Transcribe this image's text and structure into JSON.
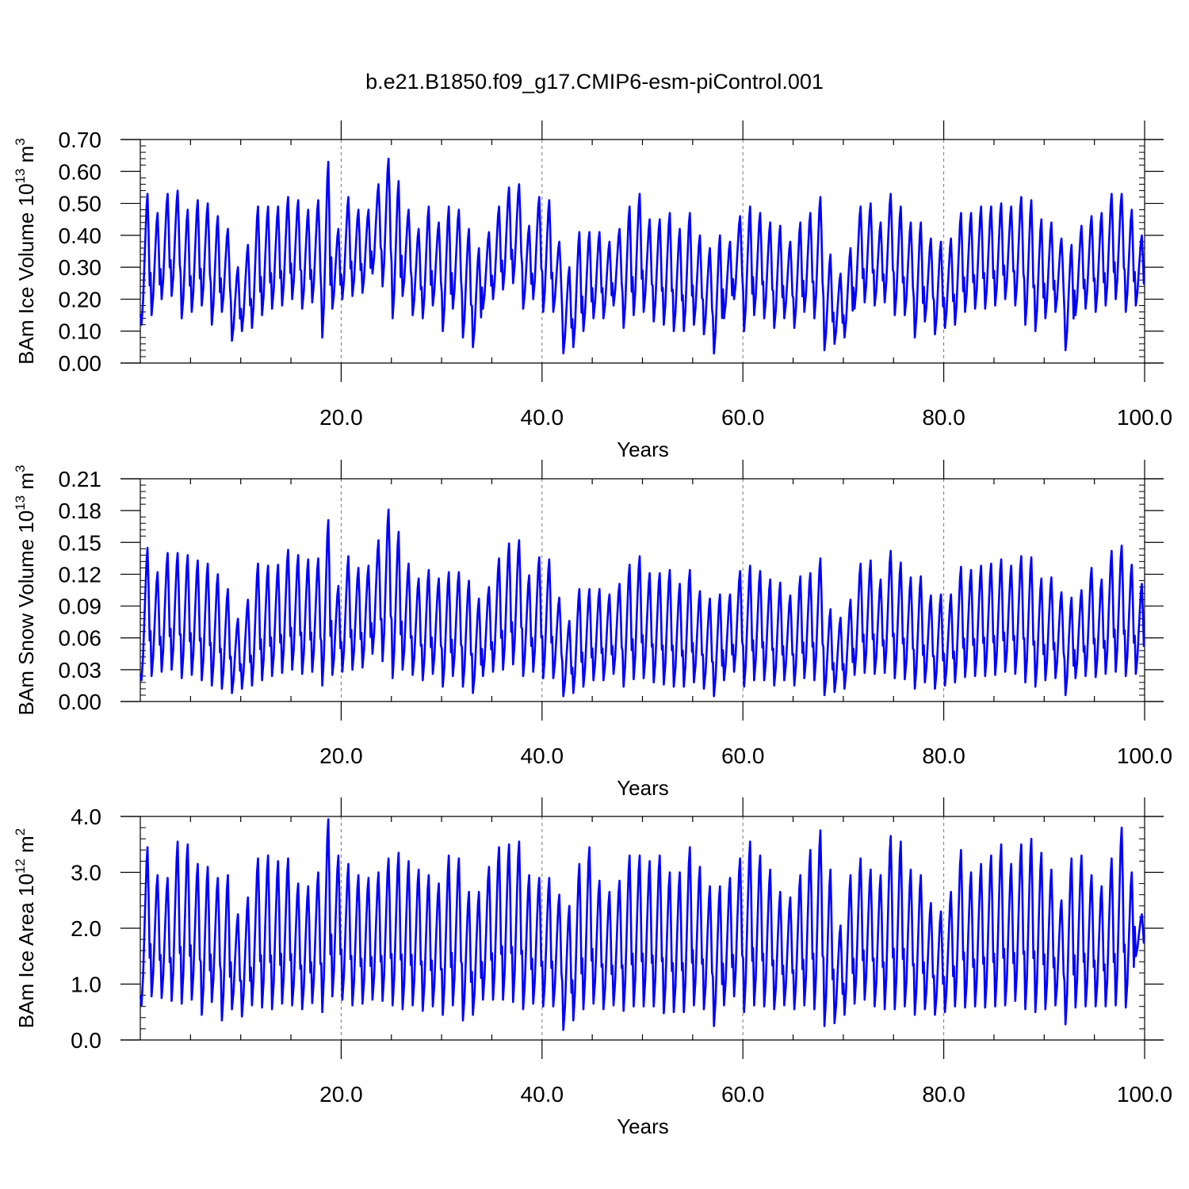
{
  "title": "b.e21.B1850.f09_g17.CMIP6-esm-piControl.001",
  "series_color": "#0000ff",
  "chart_data": [
    {
      "type": "line",
      "ylabel_main": "BAm Ice Volume 10",
      "ylabel_exp": "13",
      "ylabel_unit": " m",
      "ylabel_unit_exp": "3",
      "xlabel": "Years",
      "xlim": [
        0,
        100
      ],
      "ylim": [
        0,
        0.7
      ],
      "xticks": [
        20,
        40,
        60,
        80,
        100
      ],
      "xtick_labels": [
        "20.0",
        "40.0",
        "60.0",
        "80.0",
        "100.0"
      ],
      "yticks": [
        0,
        0.1,
        0.2,
        0.3,
        0.4,
        0.5,
        0.6,
        0.7
      ],
      "ytick_labels": [
        "0.00",
        "0.10",
        "0.20",
        "0.30",
        "0.40",
        "0.50",
        "0.60",
        "0.70"
      ],
      "x_gridlines": true,
      "peaks": [
        0.53,
        0.47,
        0.53,
        0.54,
        0.48,
        0.51,
        0.5,
        0.46,
        0.42,
        0.3,
        0.37,
        0.49,
        0.49,
        0.49,
        0.52,
        0.51,
        0.48,
        0.51,
        0.63,
        0.42,
        0.52,
        0.48,
        0.48,
        0.56,
        0.64,
        0.57,
        0.48,
        0.42,
        0.49,
        0.44,
        0.49,
        0.48,
        0.42,
        0.36,
        0.41,
        0.49,
        0.55,
        0.56,
        0.43,
        0.52,
        0.51,
        0.38,
        0.3,
        0.41,
        0.41,
        0.41,
        0.38,
        0.42,
        0.49,
        0.53,
        0.45,
        0.45,
        0.47,
        0.42,
        0.47,
        0.4,
        0.36,
        0.4,
        0.38,
        0.46,
        0.49,
        0.47,
        0.44,
        0.43,
        0.38,
        0.44,
        0.47,
        0.52,
        0.34,
        0.28,
        0.36,
        0.49,
        0.5,
        0.44,
        0.53,
        0.49,
        0.44,
        0.44,
        0.39,
        0.38,
        0.39,
        0.47,
        0.47,
        0.49,
        0.49,
        0.5,
        0.49,
        0.52,
        0.51,
        0.45,
        0.44,
        0.39,
        0.37,
        0.43,
        0.46,
        0.47,
        0.53,
        0.53,
        0.48,
        0.4
      ],
      "troughs": [
        0.12,
        0.15,
        0.2,
        0.21,
        0.14,
        0.16,
        0.18,
        0.12,
        0.16,
        0.07,
        0.1,
        0.11,
        0.15,
        0.17,
        0.18,
        0.2,
        0.17,
        0.19,
        0.08,
        0.17,
        0.2,
        0.21,
        0.22,
        0.28,
        0.24,
        0.14,
        0.21,
        0.15,
        0.14,
        0.18,
        0.1,
        0.17,
        0.08,
        0.05,
        0.17,
        0.2,
        0.23,
        0.25,
        0.17,
        0.2,
        0.16,
        0.16,
        0.03,
        0.05,
        0.1,
        0.14,
        0.14,
        0.18,
        0.11,
        0.15,
        0.16,
        0.13,
        0.12,
        0.1,
        0.1,
        0.12,
        0.09,
        0.03,
        0.14,
        0.2,
        0.1,
        0.15,
        0.14,
        0.11,
        0.14,
        0.11,
        0.16,
        0.14,
        0.04,
        0.06,
        0.08,
        0.17,
        0.19,
        0.18,
        0.19,
        0.15,
        0.15,
        0.08,
        0.13,
        0.09,
        0.11,
        0.12,
        0.16,
        0.17,
        0.17,
        0.18,
        0.2,
        0.18,
        0.12,
        0.1,
        0.14,
        0.16,
        0.04,
        0.15,
        0.17,
        0.16,
        0.18,
        0.2,
        0.16,
        0.18
      ]
    },
    {
      "type": "line",
      "ylabel_main": "BAm Snow Volume 10",
      "ylabel_exp": "13",
      "ylabel_unit": " m",
      "ylabel_unit_exp": "3",
      "xlabel": "Years",
      "xlim": [
        0,
        100
      ],
      "ylim": [
        0,
        0.21
      ],
      "xticks": [
        20,
        40,
        60,
        80,
        100
      ],
      "xtick_labels": [
        "20.0",
        "40.0",
        "60.0",
        "80.0",
        "100.0"
      ],
      "yticks": [
        0,
        0.03,
        0.06,
        0.09,
        0.12,
        0.15,
        0.18,
        0.21
      ],
      "ytick_labels": [
        "0.00",
        "0.03",
        "0.06",
        "0.09",
        "0.12",
        "0.15",
        "0.18",
        "0.21"
      ],
      "x_gridlines": true,
      "peaks": [
        0.145,
        0.122,
        0.14,
        0.14,
        0.138,
        0.133,
        0.13,
        0.12,
        0.106,
        0.078,
        0.096,
        0.13,
        0.128,
        0.129,
        0.143,
        0.138,
        0.134,
        0.135,
        0.171,
        0.109,
        0.137,
        0.126,
        0.128,
        0.152,
        0.181,
        0.16,
        0.13,
        0.116,
        0.124,
        0.116,
        0.122,
        0.122,
        0.114,
        0.097,
        0.108,
        0.135,
        0.149,
        0.152,
        0.119,
        0.136,
        0.134,
        0.098,
        0.076,
        0.106,
        0.106,
        0.106,
        0.101,
        0.111,
        0.129,
        0.137,
        0.121,
        0.121,
        0.124,
        0.111,
        0.124,
        0.104,
        0.097,
        0.101,
        0.101,
        0.123,
        0.128,
        0.123,
        0.115,
        0.112,
        0.1,
        0.118,
        0.121,
        0.135,
        0.087,
        0.079,
        0.096,
        0.13,
        0.133,
        0.115,
        0.142,
        0.131,
        0.117,
        0.118,
        0.1,
        0.101,
        0.101,
        0.127,
        0.124,
        0.128,
        0.13,
        0.134,
        0.128,
        0.137,
        0.136,
        0.116,
        0.117,
        0.103,
        0.098,
        0.105,
        0.126,
        0.115,
        0.142,
        0.147,
        0.129,
        0.111
      ],
      "troughs": [
        0.02,
        0.024,
        0.028,
        0.03,
        0.022,
        0.025,
        0.02,
        0.015,
        0.012,
        0.008,
        0.012,
        0.015,
        0.02,
        0.024,
        0.027,
        0.03,
        0.026,
        0.028,
        0.015,
        0.025,
        0.028,
        0.03,
        0.032,
        0.045,
        0.038,
        0.022,
        0.03,
        0.025,
        0.02,
        0.026,
        0.014,
        0.024,
        0.014,
        0.008,
        0.024,
        0.028,
        0.03,
        0.035,
        0.024,
        0.028,
        0.022,
        0.022,
        0.005,
        0.008,
        0.014,
        0.02,
        0.02,
        0.026,
        0.014,
        0.021,
        0.022,
        0.018,
        0.016,
        0.014,
        0.014,
        0.018,
        0.012,
        0.005,
        0.02,
        0.028,
        0.014,
        0.02,
        0.02,
        0.015,
        0.02,
        0.015,
        0.022,
        0.02,
        0.006,
        0.009,
        0.012,
        0.025,
        0.027,
        0.026,
        0.027,
        0.022,
        0.021,
        0.012,
        0.018,
        0.012,
        0.015,
        0.018,
        0.023,
        0.024,
        0.024,
        0.025,
        0.028,
        0.026,
        0.018,
        0.014,
        0.02,
        0.022,
        0.006,
        0.022,
        0.024,
        0.023,
        0.026,
        0.028,
        0.024,
        0.026
      ]
    },
    {
      "type": "line",
      "ylabel_main": "BAm Ice Area 10",
      "ylabel_exp": "12",
      "ylabel_unit": " m",
      "ylabel_unit_exp": "2",
      "xlabel": "Years",
      "xlim": [
        0,
        100
      ],
      "ylim": [
        0,
        4.0
      ],
      "xticks": [
        20,
        40,
        60,
        80,
        100
      ],
      "xtick_labels": [
        "20.0",
        "40.0",
        "60.0",
        "80.0",
        "100.0"
      ],
      "yticks": [
        0,
        1,
        2,
        3,
        4
      ],
      "ytick_labels": [
        "0.0",
        "1.0",
        "2.0",
        "3.0",
        "4.0"
      ],
      "x_gridlines": true,
      "peaks": [
        3.45,
        2.95,
        2.9,
        3.55,
        3.5,
        3.15,
        3.1,
        2.9,
        2.95,
        2.25,
        2.55,
        3.25,
        3.3,
        3.2,
        3.25,
        2.8,
        2.75,
        3.0,
        3.95,
        3.3,
        3.15,
        2.95,
        2.9,
        3.0,
        3.25,
        3.35,
        3.2,
        3.05,
        2.95,
        2.8,
        3.3,
        3.25,
        2.65,
        2.65,
        3.1,
        3.45,
        3.5,
        3.55,
        2.95,
        2.9,
        2.9,
        2.6,
        2.4,
        3.15,
        3.45,
        2.85,
        2.65,
        2.85,
        3.3,
        3.3,
        3.2,
        3.3,
        3.0,
        3.0,
        3.45,
        3.1,
        2.75,
        2.75,
        2.9,
        3.25,
        3.55,
        3.3,
        3.05,
        2.65,
        2.55,
        2.95,
        3.4,
        3.75,
        3.05,
        2.05,
        2.95,
        3.25,
        3.05,
        2.95,
        3.65,
        3.55,
        3.05,
        2.95,
        2.45,
        2.3,
        2.65,
        3.4,
        3.0,
        3.15,
        3.3,
        3.5,
        3.15,
        3.5,
        3.6,
        3.35,
        3.05,
        2.5,
        3.25,
        3.3,
        2.95,
        2.75,
        3.25,
        3.8,
        3.0,
        2.25
      ],
      "troughs": [
        0.62,
        0.78,
        0.75,
        0.7,
        0.65,
        0.72,
        0.45,
        0.68,
        0.35,
        0.55,
        0.42,
        0.62,
        0.58,
        0.55,
        0.65,
        0.62,
        0.55,
        0.66,
        0.5,
        0.78,
        0.72,
        0.62,
        0.65,
        0.72,
        0.7,
        0.62,
        0.55,
        0.62,
        0.52,
        0.6,
        0.45,
        0.62,
        0.35,
        0.45,
        0.72,
        0.72,
        0.72,
        0.68,
        0.55,
        0.65,
        0.6,
        0.6,
        0.18,
        0.35,
        0.55,
        0.65,
        0.55,
        0.62,
        0.52,
        0.6,
        0.6,
        0.6,
        0.48,
        0.5,
        0.5,
        0.62,
        0.55,
        0.25,
        0.62,
        0.78,
        0.5,
        0.62,
        0.6,
        0.55,
        0.62,
        0.55,
        0.62,
        0.55,
        0.25,
        0.3,
        0.45,
        0.65,
        0.72,
        0.6,
        0.55,
        0.55,
        0.6,
        0.45,
        0.55,
        0.45,
        0.5,
        0.6,
        0.58,
        0.6,
        0.58,
        0.6,
        0.62,
        0.7,
        0.55,
        0.5,
        0.55,
        0.62,
        0.28,
        0.58,
        0.6,
        0.6,
        0.6,
        0.62,
        0.58,
        1.5
      ]
    }
  ]
}
